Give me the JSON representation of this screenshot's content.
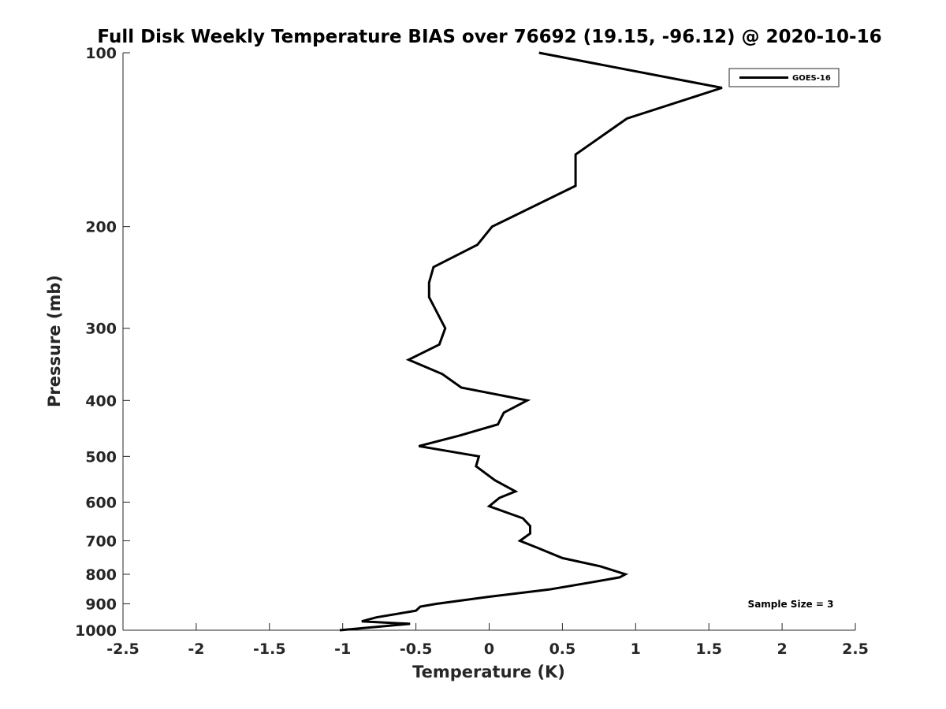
{
  "chart_data": {
    "type": "line",
    "title": "Full Disk Weekly Temperature BIAS over 76692 (19.15, -96.12) @ 2020-10-16",
    "xlabel": "Temperature (K)",
    "ylabel": "Pressure (mb)",
    "xlim": [
      -2.5,
      2.5
    ],
    "ylim": [
      100,
      1000
    ],
    "y_scale": "log",
    "y_reversed": true,
    "grid": false,
    "legend_position": "top-right",
    "x_ticks": [
      -2.5,
      -2,
      -1.5,
      -1,
      -0.5,
      0,
      0.5,
      1,
      1.5,
      2,
      2.5
    ],
    "x_tick_labels": [
      "-2.5",
      "-2",
      "-1.5",
      "-1",
      "-0.5",
      "0",
      "0.5",
      "1",
      "1.5",
      "2",
      "2.5"
    ],
    "y_ticks": [
      100,
      200,
      300,
      400,
      500,
      600,
      700,
      800,
      900,
      1000
    ],
    "y_tick_labels": [
      "100",
      "200",
      "300",
      "400",
      "500",
      "600",
      "700",
      "800",
      "900",
      "1000"
    ],
    "series": [
      {
        "name": "GOES-16",
        "color": "#000000",
        "points": [
          [
            0.34,
            100
          ],
          [
            1.59,
            115
          ],
          [
            0.94,
            130
          ],
          [
            0.59,
            150
          ],
          [
            0.59,
            170
          ],
          [
            0.02,
            200
          ],
          [
            -0.08,
            215
          ],
          [
            -0.38,
            235
          ],
          [
            -0.41,
            250
          ],
          [
            -0.41,
            265
          ],
          [
            -0.3,
            300
          ],
          [
            -0.34,
            320
          ],
          [
            -0.55,
            340
          ],
          [
            -0.32,
            360
          ],
          [
            -0.19,
            380
          ],
          [
            0.26,
            400
          ],
          [
            0.1,
            420
          ],
          [
            0.06,
            440
          ],
          [
            -0.2,
            460
          ],
          [
            -0.48,
            480
          ],
          [
            -0.07,
            500
          ],
          [
            -0.09,
            520
          ],
          [
            0.04,
            550
          ],
          [
            0.18,
            575
          ],
          [
            0.07,
            590
          ],
          [
            0.0,
            610
          ],
          [
            0.23,
            640
          ],
          [
            0.28,
            660
          ],
          [
            0.28,
            680
          ],
          [
            0.21,
            700
          ],
          [
            0.33,
            720
          ],
          [
            0.5,
            750
          ],
          [
            0.76,
            775
          ],
          [
            0.93,
            800
          ],
          [
            0.89,
            810
          ],
          [
            0.71,
            825
          ],
          [
            0.41,
            850
          ],
          [
            0.0,
            875
          ],
          [
            -0.36,
            900
          ],
          [
            -0.47,
            910
          ],
          [
            -0.5,
            925
          ],
          [
            -0.77,
            950
          ],
          [
            -0.87,
            965
          ],
          [
            -0.54,
            975
          ],
          [
            -1.02,
            1000
          ]
        ]
      }
    ],
    "annotations": [
      {
        "text": "Sample Size = 3",
        "position": "bottom-right"
      }
    ]
  }
}
